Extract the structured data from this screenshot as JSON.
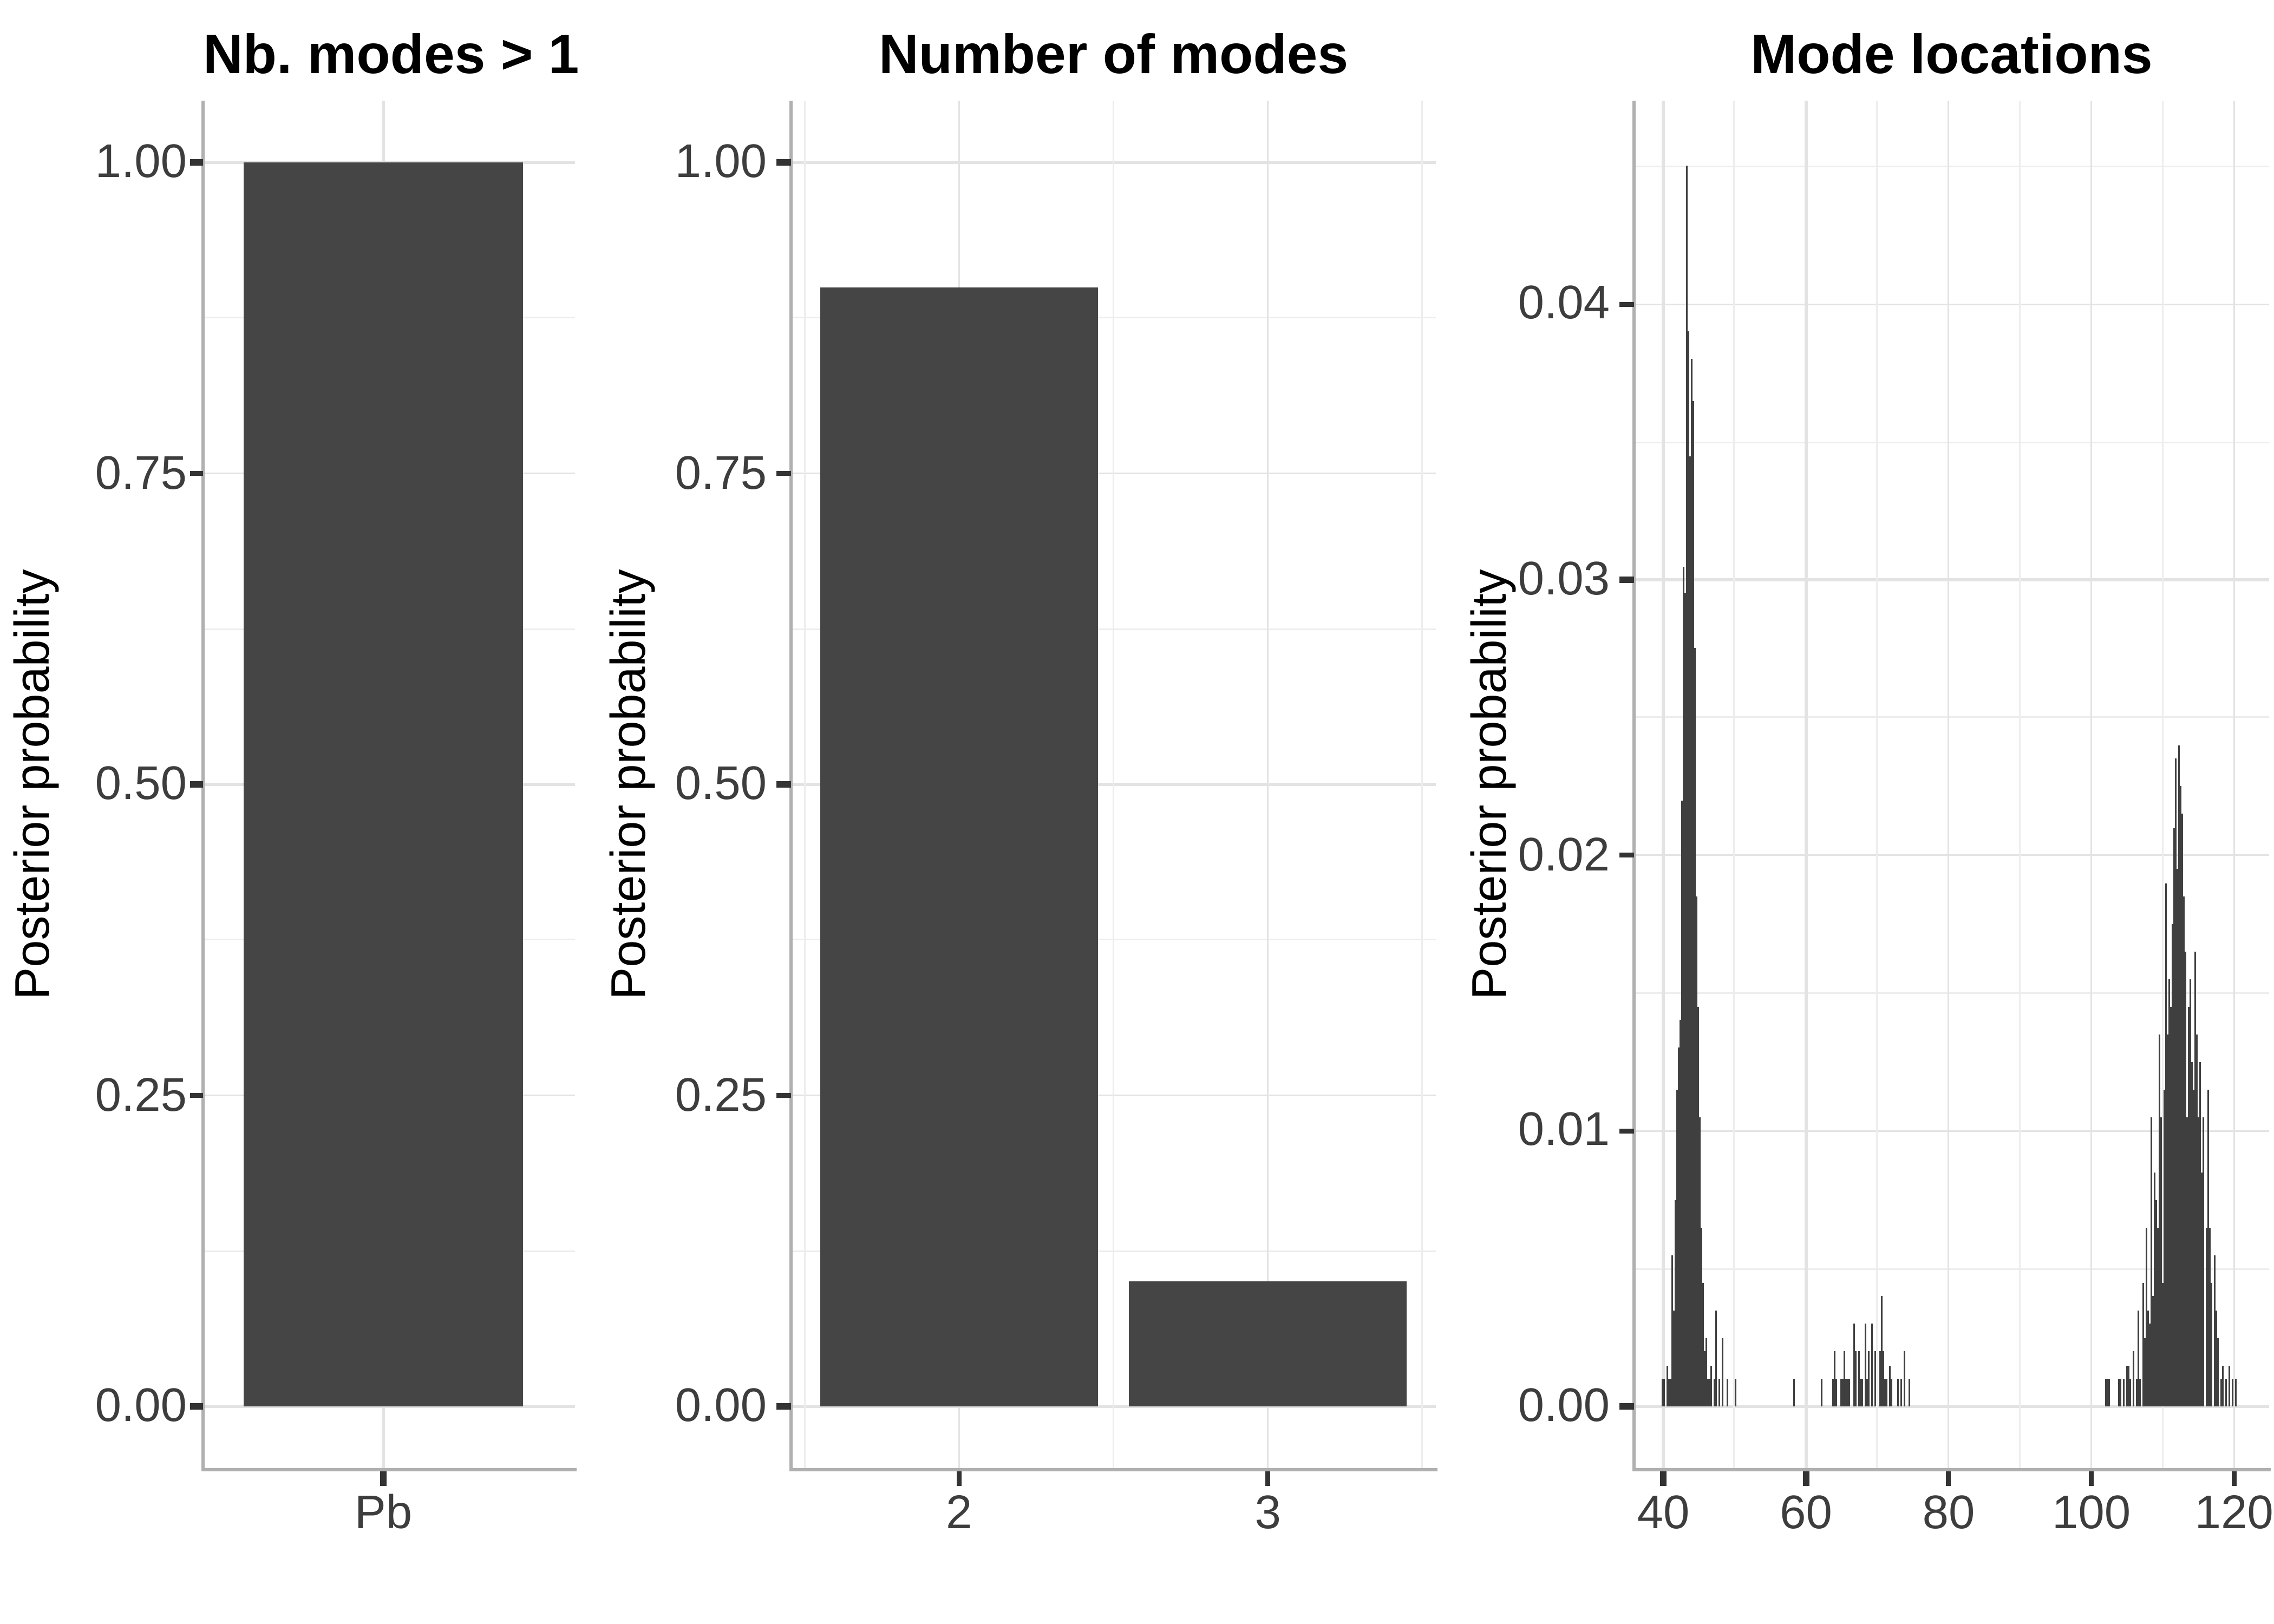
{
  "figure": {
    "background": "#ffffff",
    "bar_color": "#454545",
    "spike_color": "#3f3f3f",
    "grid_major_color": "#e3e3e3",
    "grid_minor_color": "#ededed",
    "axis_line_color": "#b0b0b0",
    "tick_mark_color": "#333333",
    "tick_label_color": "#3d3d3d",
    "title_color": "#000000"
  },
  "chart_data": [
    {
      "type": "bar",
      "title": "Nb. modes > 1",
      "xlabel": "",
      "ylabel": "Posterior probability",
      "categories": [
        "Pb"
      ],
      "values": [
        1.0
      ],
      "ylim": [
        0,
        1.05
      ],
      "yticks": [
        {
          "value": 0.0,
          "label": "0.00"
        },
        {
          "value": 0.25,
          "label": "0.25"
        },
        {
          "value": 0.5,
          "label": "0.50"
        },
        {
          "value": 0.75,
          "label": "0.75"
        },
        {
          "value": 1.0,
          "label": "1.00"
        }
      ],
      "yminor": [
        0.125,
        0.375,
        0.625,
        0.875
      ],
      "grid": "major+minor",
      "legend": "none"
    },
    {
      "type": "bar",
      "title": "Number of modes",
      "xlabel": "",
      "ylabel": "Posterior probability",
      "categories": [
        "2",
        "3"
      ],
      "values": [
        0.9,
        0.1
      ],
      "ylim": [
        0,
        1.05
      ],
      "yticks": [
        {
          "value": 0.0,
          "label": "0.00"
        },
        {
          "value": 0.25,
          "label": "0.25"
        },
        {
          "value": 0.5,
          "label": "0.50"
        },
        {
          "value": 0.75,
          "label": "0.75"
        },
        {
          "value": 1.0,
          "label": "1.00"
        }
      ],
      "yminor": [
        0.125,
        0.375,
        0.625,
        0.875
      ],
      "grid": "major+minor",
      "legend": "none"
    },
    {
      "type": "bar",
      "title": "Mode locations",
      "xlabel": "",
      "ylabel": "Posterior probability",
      "xlim": [
        35.8,
        124.9
      ],
      "ylim": [
        -0.0023,
        0.0474
      ],
      "xticks": [
        {
          "value": 40,
          "label": "40"
        },
        {
          "value": 60,
          "label": "60"
        },
        {
          "value": 80,
          "label": "80"
        },
        {
          "value": 100,
          "label": "100"
        },
        {
          "value": 120,
          "label": "120"
        }
      ],
      "xminor": [
        50,
        70,
        90,
        110
      ],
      "yticks": [
        {
          "value": 0.0,
          "label": "0.00"
        },
        {
          "value": 0.01,
          "label": "0.01"
        },
        {
          "value": 0.02,
          "label": "0.02"
        },
        {
          "value": 0.03,
          "label": "0.03"
        },
        {
          "value": 0.04,
          "label": "0.04"
        }
      ],
      "yminor": [
        0.005,
        0.015,
        0.025,
        0.035,
        0.045
      ],
      "grid": "major+minor",
      "legend": "none",
      "spikes": [
        [
          39.9,
          0.001
        ],
        [
          40.15,
          0.001
        ],
        [
          40.55,
          0.0015
        ],
        [
          40.8,
          0.001
        ],
        [
          41.0,
          0.001
        ],
        [
          41.15,
          0.0025
        ],
        [
          41.35,
          0.0055
        ],
        [
          41.5,
          0.0035
        ],
        [
          41.65,
          0.0075
        ],
        [
          41.85,
          0.0095
        ],
        [
          42.0,
          0.0115
        ],
        [
          42.15,
          0.013
        ],
        [
          42.3,
          0.0105
        ],
        [
          42.45,
          0.014
        ],
        [
          42.6,
          0.022
        ],
        [
          42.75,
          0.0305
        ],
        [
          42.9,
          0.03
        ],
        [
          43.05,
          0.0295
        ],
        [
          43.2,
          0.028
        ],
        [
          43.35,
          0.045
        ],
        [
          43.5,
          0.039
        ],
        [
          43.65,
          0.0345
        ],
        [
          43.8,
          0.0345
        ],
        [
          43.95,
          0.038
        ],
        [
          44.1,
          0.0365
        ],
        [
          44.25,
          0.031
        ],
        [
          44.4,
          0.0275
        ],
        [
          44.55,
          0.0245
        ],
        [
          44.7,
          0.0185
        ],
        [
          44.85,
          0.0145
        ],
        [
          45.0,
          0.012
        ],
        [
          45.15,
          0.0105
        ],
        [
          45.35,
          0.0065
        ],
        [
          45.55,
          0.0045
        ],
        [
          45.75,
          0.002
        ],
        [
          45.95,
          0.0025
        ],
        [
          46.2,
          0.001
        ],
        [
          46.5,
          0.001
        ],
        [
          46.8,
          0.0015
        ],
        [
          47.1,
          0.001
        ],
        [
          47.45,
          0.0035
        ],
        [
          47.8,
          0.001
        ],
        [
          48.3,
          0.0025
        ],
        [
          48.9,
          0.001
        ],
        [
          50.1,
          0.001
        ],
        [
          58.4,
          0.001
        ],
        [
          62.1,
          0.001
        ],
        [
          63.8,
          0.001
        ],
        [
          64.1,
          0.002
        ],
        [
          64.35,
          0.001
        ],
        [
          64.85,
          0.001
        ],
        [
          65.05,
          0.001
        ],
        [
          65.3,
          0.002
        ],
        [
          65.7,
          0.001
        ],
        [
          65.9,
          0.001
        ],
        [
          66.1,
          0.001
        ],
        [
          66.8,
          0.003
        ],
        [
          67.0,
          0.002
        ],
        [
          67.4,
          0.002
        ],
        [
          67.6,
          0.001
        ],
        [
          67.75,
          0.001
        ],
        [
          67.95,
          0.001
        ],
        [
          68.3,
          0.003
        ],
        [
          68.6,
          0.001
        ],
        [
          68.9,
          0.002
        ],
        [
          69.2,
          0.003
        ],
        [
          69.6,
          0.002
        ],
        [
          70.3,
          0.002
        ],
        [
          70.55,
          0.004
        ],
        [
          70.75,
          0.002
        ],
        [
          71.0,
          0.001
        ],
        [
          71.3,
          0.001
        ],
        [
          71.8,
          0.0015
        ],
        [
          71.95,
          0.001
        ],
        [
          73.0,
          0.001
        ],
        [
          73.3,
          0.001
        ],
        [
          73.7,
          0.002
        ],
        [
          74.5,
          0.001
        ],
        [
          102.1,
          0.001
        ],
        [
          102.35,
          0.001
        ],
        [
          102.6,
          0.001
        ],
        [
          103.9,
          0.001
        ],
        [
          104.15,
          0.001
        ],
        [
          104.45,
          0.001
        ],
        [
          104.9,
          0.0015
        ],
        [
          105.2,
          0.0015
        ],
        [
          105.45,
          0.001
        ],
        [
          105.9,
          0.002
        ],
        [
          106.25,
          0.001
        ],
        [
          106.6,
          0.0035
        ],
        [
          106.9,
          0.001
        ],
        [
          107.2,
          0.0045
        ],
        [
          107.45,
          0.0025
        ],
        [
          107.7,
          0.0065
        ],
        [
          107.95,
          0.0035
        ],
        [
          108.2,
          0.003
        ],
        [
          108.45,
          0.0105
        ],
        [
          108.7,
          0.004
        ],
        [
          108.9,
          0.0085
        ],
        [
          109.1,
          0.0075
        ],
        [
          109.35,
          0.0065
        ],
        [
          109.6,
          0.0135
        ],
        [
          109.8,
          0.0105
        ],
        [
          110.0,
          0.0045
        ],
        [
          110.2,
          0.0115
        ],
        [
          110.45,
          0.019
        ],
        [
          110.65,
          0.0135
        ],
        [
          110.85,
          0.0155
        ],
        [
          111.05,
          0.009
        ],
        [
          111.25,
          0.0145
        ],
        [
          111.45,
          0.0175
        ],
        [
          111.65,
          0.021
        ],
        [
          111.85,
          0.0235
        ],
        [
          112.05,
          0.0195
        ],
        [
          112.25,
          0.024
        ],
        [
          112.45,
          0.0225
        ],
        [
          112.65,
          0.0215
        ],
        [
          112.85,
          0.0145
        ],
        [
          113.05,
          0.0185
        ],
        [
          113.25,
          0.0165
        ],
        [
          113.45,
          0.0105
        ],
        [
          113.65,
          0.0145
        ],
        [
          113.85,
          0.0155
        ],
        [
          114.1,
          0.0125
        ],
        [
          114.3,
          0.0115
        ],
        [
          114.55,
          0.0165
        ],
        [
          114.8,
          0.0135
        ],
        [
          115.05,
          0.0105
        ],
        [
          115.3,
          0.0125
        ],
        [
          115.55,
          0.0085
        ],
        [
          115.8,
          0.0105
        ],
        [
          116.05,
          0.0065
        ],
        [
          116.3,
          0.0115
        ],
        [
          116.6,
          0.0065
        ],
        [
          116.9,
          0.0045
        ],
        [
          117.2,
          0.0055
        ],
        [
          117.5,
          0.0035
        ],
        [
          117.8,
          0.0025
        ],
        [
          118.15,
          0.001
        ],
        [
          118.5,
          0.0015
        ],
        [
          118.9,
          0.001
        ],
        [
          119.4,
          0.0015
        ],
        [
          119.8,
          0.001
        ],
        [
          120.3,
          0.001
        ]
      ]
    }
  ]
}
